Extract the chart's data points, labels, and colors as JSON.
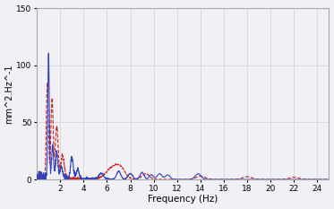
{
  "title": "",
  "xlabel": "Frequency (Hz)",
  "ylabel": "mm^2.Hz^-1",
  "xlim": [
    0,
    25
  ],
  "ylim": [
    0,
    150
  ],
  "xticks": [
    2,
    4,
    6,
    8,
    10,
    12,
    14,
    16,
    18,
    20,
    22,
    24
  ],
  "yticks": [
    0,
    50,
    100,
    150
  ],
  "blue_color": "#3344bb",
  "red_color": "#cc2222",
  "grid_color": "#d0d0d8",
  "background_color": "#f0f0f5",
  "linewidth_blue": 0.8,
  "linewidth_red": 0.8,
  "figsize": [
    3.73,
    2.33
  ],
  "dpi": 100
}
